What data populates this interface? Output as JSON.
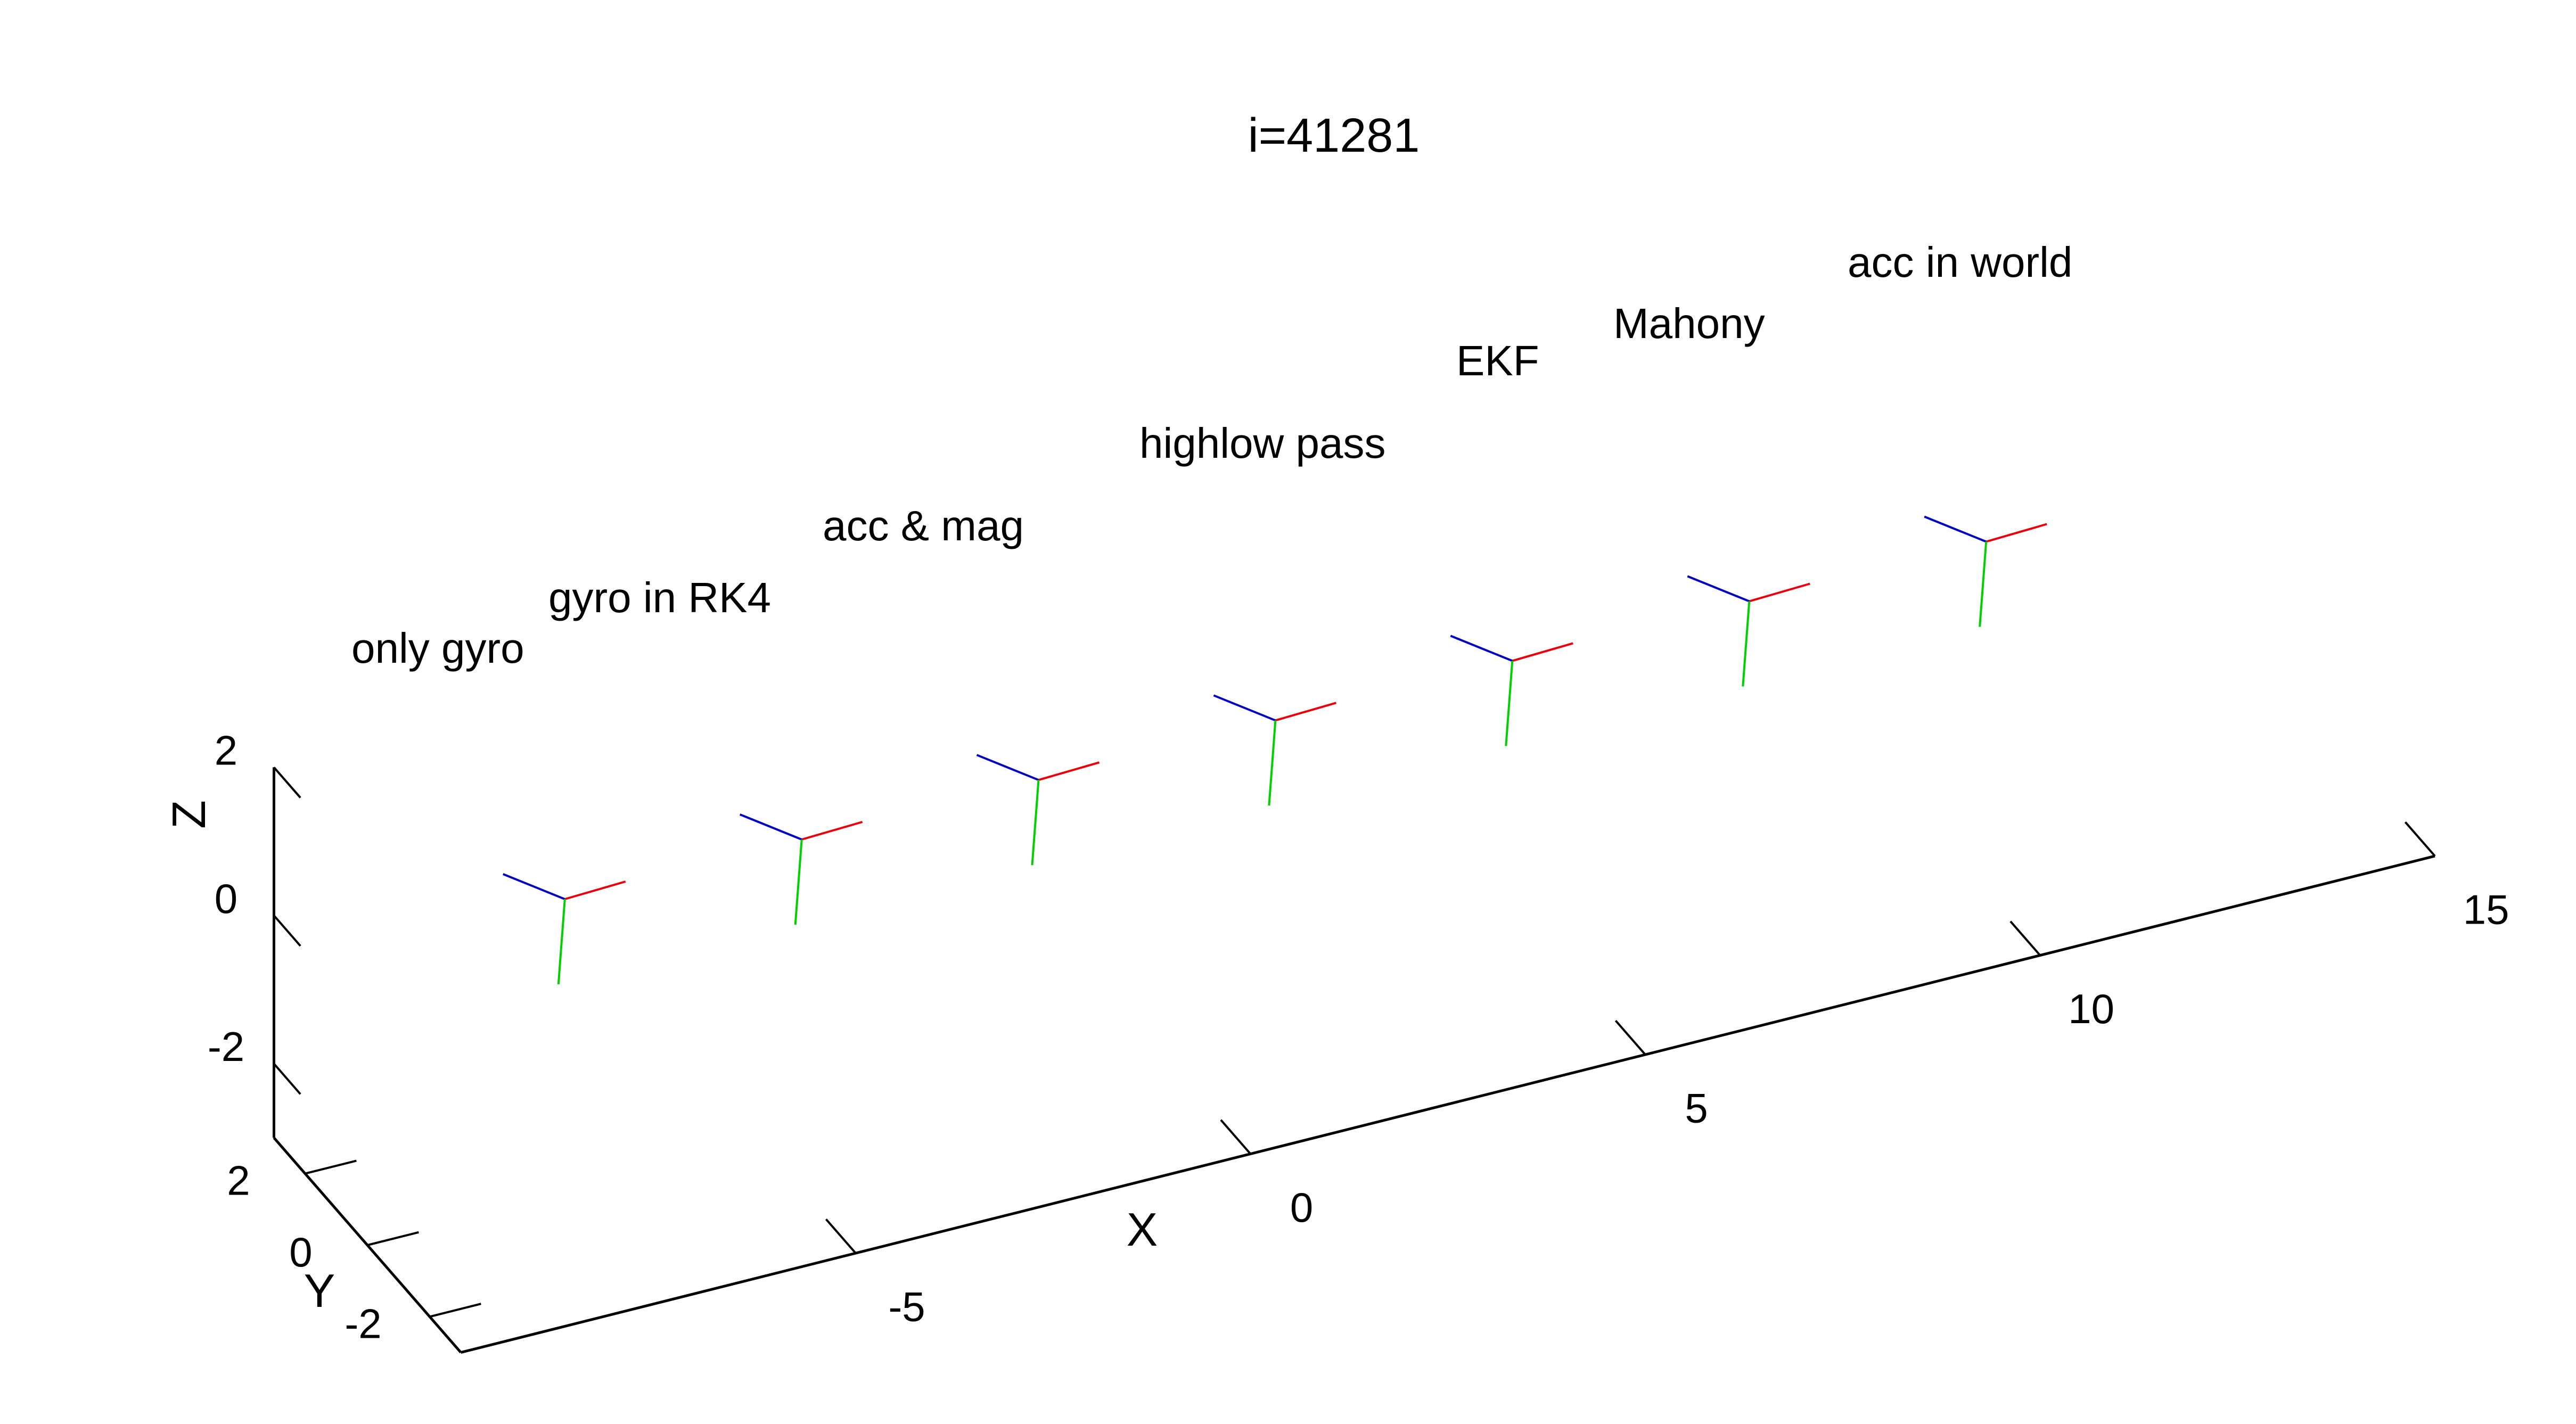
{
  "chart_data": {
    "type": "scatter",
    "title": "i=41281",
    "xlabel": "X",
    "ylabel": "Y",
    "zlabel": "Z",
    "xlim": [
      -10,
      15
    ],
    "ylim": [
      -3,
      3
    ],
    "zlim": [
      -3,
      2
    ],
    "x_ticks": [
      -5,
      0,
      5,
      10,
      15
    ],
    "y_ticks": [
      -2,
      0,
      2
    ],
    "z_ticks": [
      -2,
      0,
      2
    ],
    "axis_colors": {
      "x_axis": "#e8000b",
      "y_axis": "#00d000",
      "z_axis": "#0000c0"
    },
    "series": [
      {
        "name": "only gyro",
        "x": -7.5
      },
      {
        "name": "gyro in RK4",
        "x": -4.5
      },
      {
        "name": "acc & mag",
        "x": -1.5
      },
      {
        "name": "highlow pass",
        "x": 1.5
      },
      {
        "name": "EKF",
        "x": 4.5
      },
      {
        "name": "Mahony",
        "x": 7.5
      },
      {
        "name": "acc in world",
        "x": 10.5
      }
    ]
  }
}
